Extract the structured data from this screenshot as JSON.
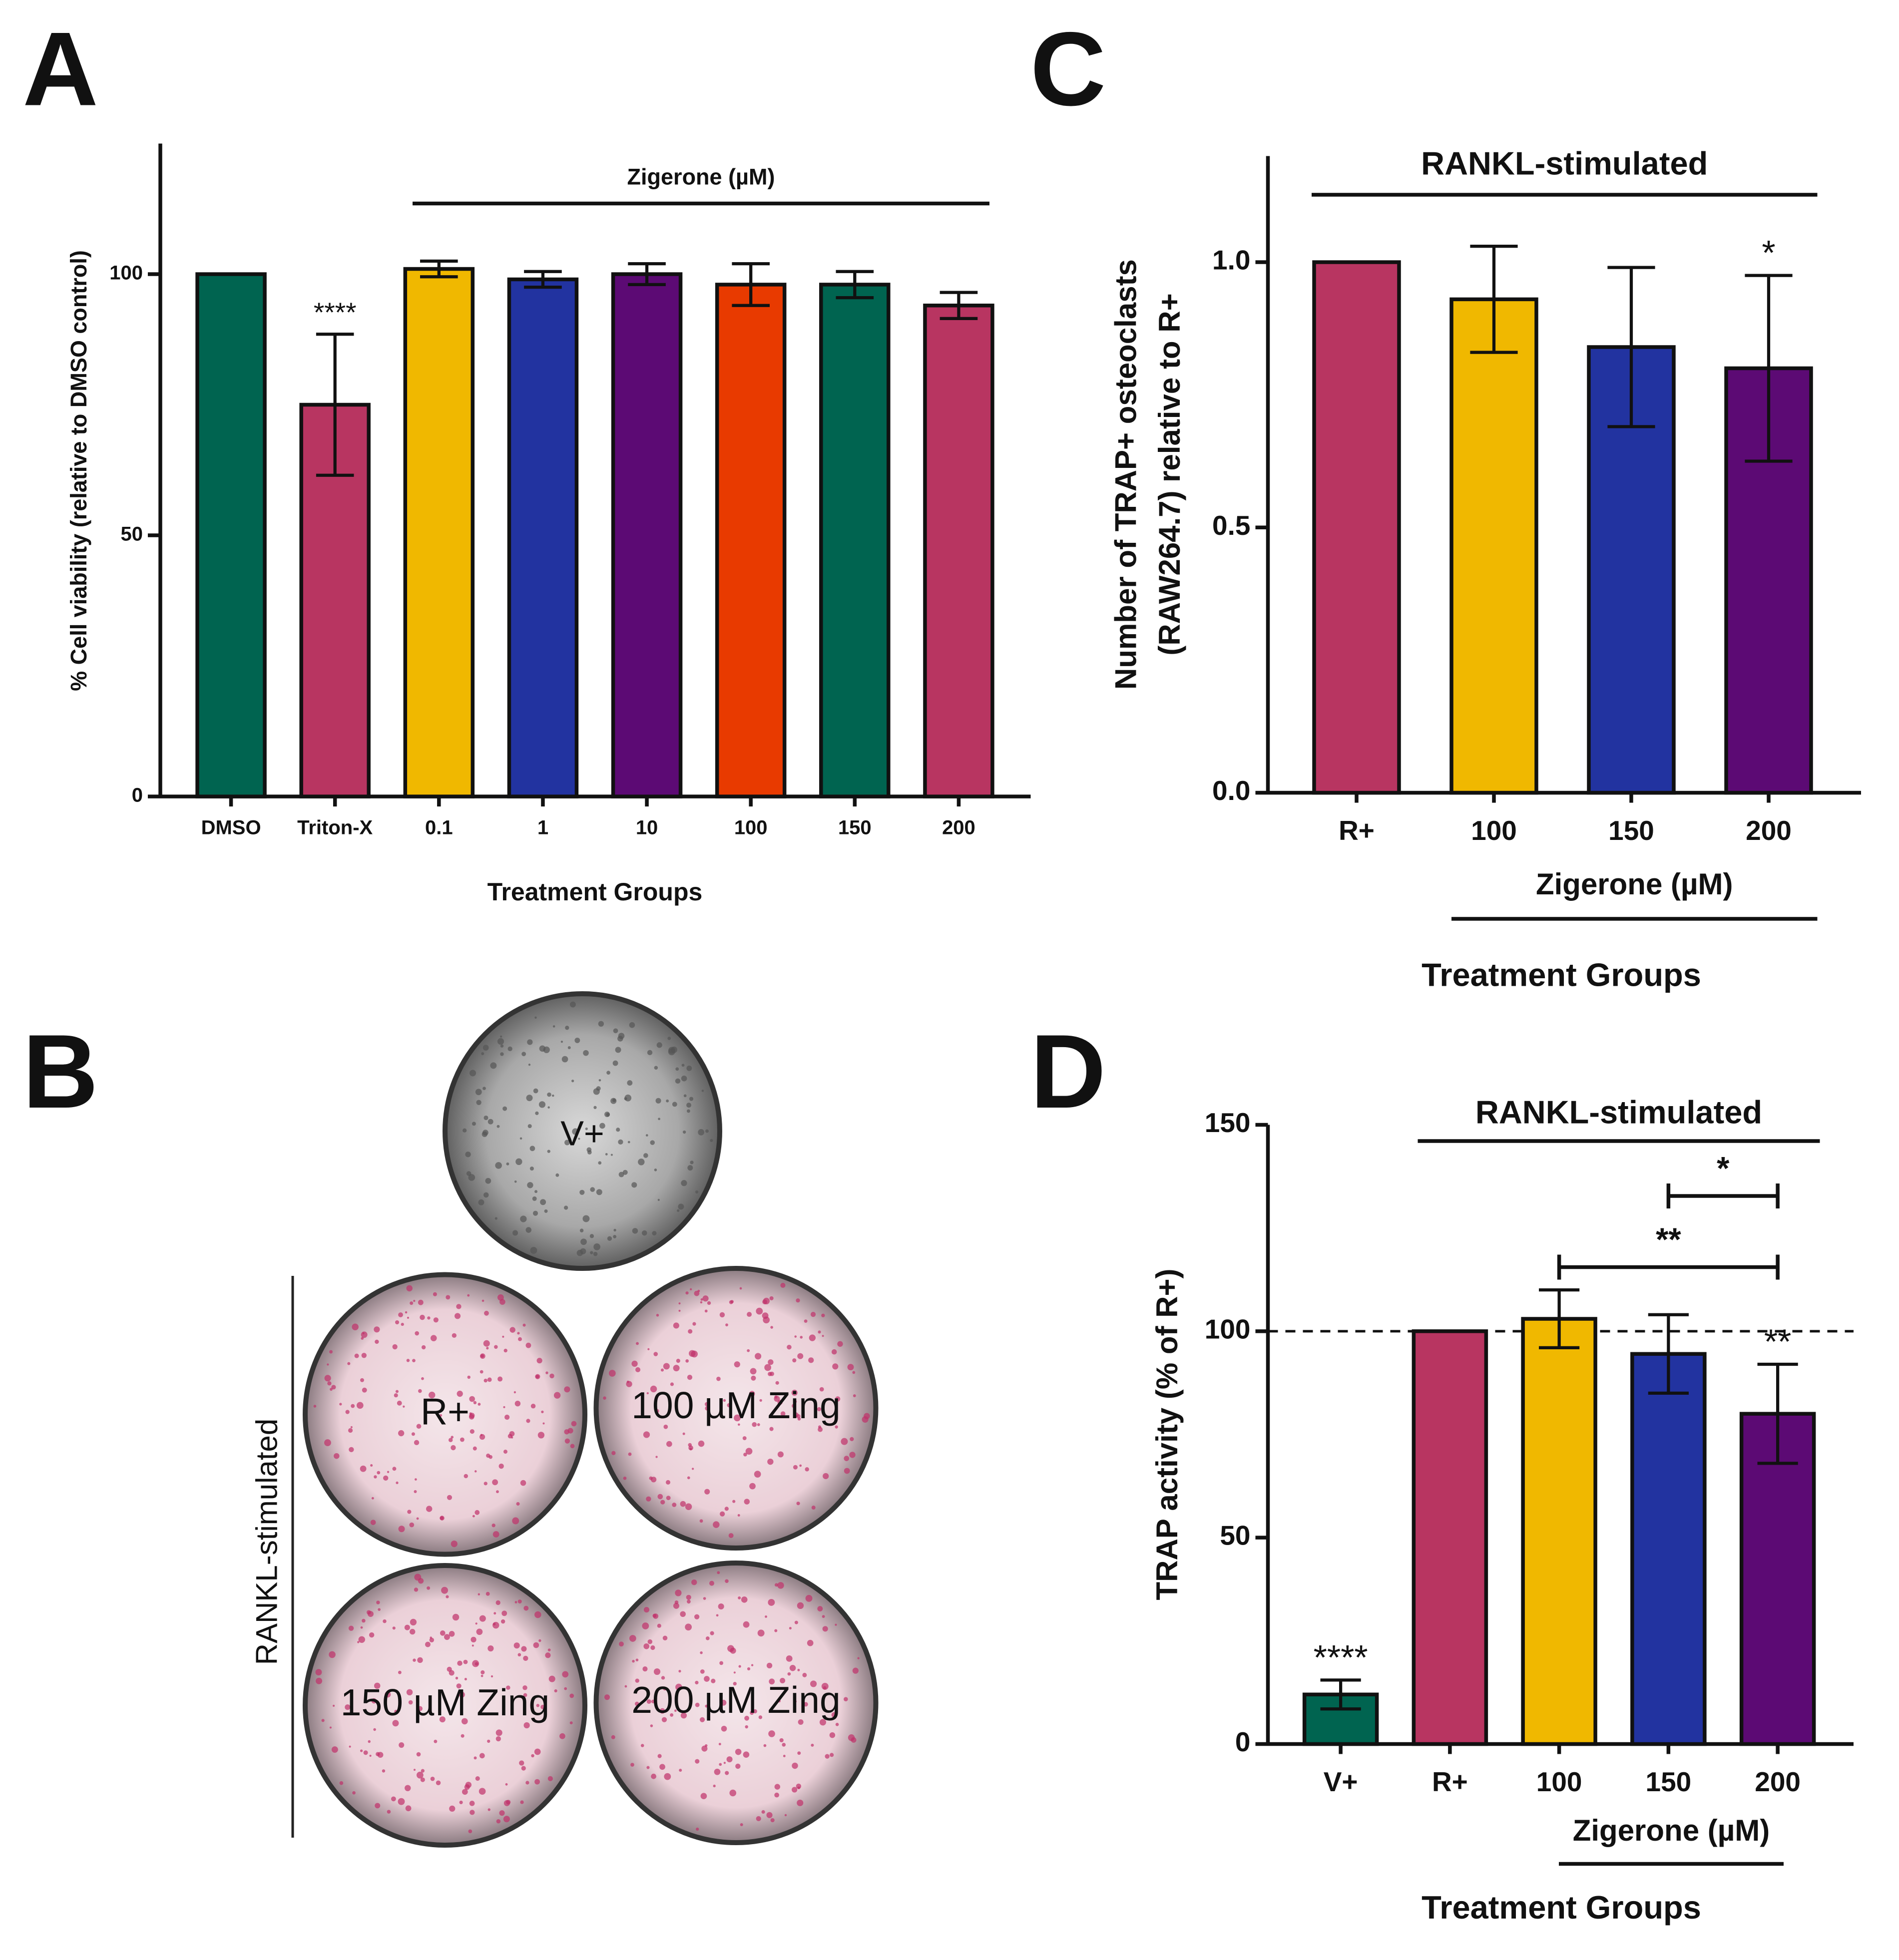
{
  "panels": {
    "labels": [
      "A",
      "B",
      "C",
      "D"
    ]
  },
  "micrographs": {
    "labels": [
      "V+",
      "R+",
      "100 µM Zing",
      "150 µM Zing",
      "200 µM Zing"
    ],
    "side_label": "RANKL-stimulated"
  },
  "chart_data": [
    {
      "type": "bar",
      "ylabel": [
        "% Cell viability (relative to DMSO control)"
      ],
      "xlabel": "Treatment Groups",
      "group_label": "Zigerone (µM)",
      "categories": [
        "DMSO",
        "Triton-X",
        "0.1",
        "1",
        "10",
        "100",
        "150",
        "200"
      ],
      "values": [
        100,
        75,
        101,
        99,
        100,
        98,
        98,
        94
      ],
      "errors": [
        null,
        13.5,
        1.5,
        1.5,
        2,
        4,
        2.5,
        2.5
      ],
      "colors": [
        "#006450",
        "#b83561",
        "#f0b800",
        "#2233a0",
        "#5c0a74",
        "#e83a00",
        "#006450",
        "#b83561"
      ],
      "bar_labels": [
        null,
        "****",
        null,
        null,
        null,
        null,
        null,
        null
      ],
      "ylim": [
        0,
        125
      ],
      "yticks": [
        0,
        50,
        100
      ]
    },
    {
      "type": "bar",
      "ylabel": [
        "Number of TRAP+ osteoclasts",
        "(RAW264.7) relative to R+"
      ],
      "xlabel": "Treatment Groups",
      "header": "RANKL-stimulated",
      "group_label": "Zigerone (µM)",
      "categories": [
        "R+",
        "100",
        "150",
        "200"
      ],
      "values": [
        1.0,
        0.93,
        0.84,
        0.8
      ],
      "errors": [
        null,
        0.1,
        0.15,
        0.175
      ],
      "colors": [
        "#b83561",
        "#f0b800",
        "#2233a0",
        "#5c0a74"
      ],
      "bar_labels": [
        null,
        null,
        null,
        "*"
      ],
      "ylim": [
        0,
        1.2
      ],
      "yticks": [
        {
          "value": 0,
          "label": "0.0"
        },
        0.5,
        {
          "value": 1,
          "label": "1.0"
        }
      ]
    },
    {
      "type": "bar",
      "ylabel": [
        "TRAP activity (% of R+)"
      ],
      "xlabel": "Treatment Groups",
      "header": "RANKL-stimulated",
      "group_label": "Zigerone (µM)",
      "categories": [
        "V+",
        "R+",
        "100",
        "150",
        "200"
      ],
      "values": [
        12,
        100,
        103,
        94.5,
        80
      ],
      "errors": [
        3.5,
        null,
        7,
        9.5,
        12
      ],
      "colors": [
        "#006450",
        "#b83561",
        "#f0b800",
        "#2233a0",
        "#5c0a74"
      ],
      "bar_labels": [
        "****",
        null,
        null,
        null,
        "**"
      ],
      "brackets": [
        "*",
        "**"
      ],
      "reference_line": 100,
      "ylim": [
        0,
        150
      ],
      "yticks": [
        0,
        50,
        100,
        150
      ]
    }
  ]
}
